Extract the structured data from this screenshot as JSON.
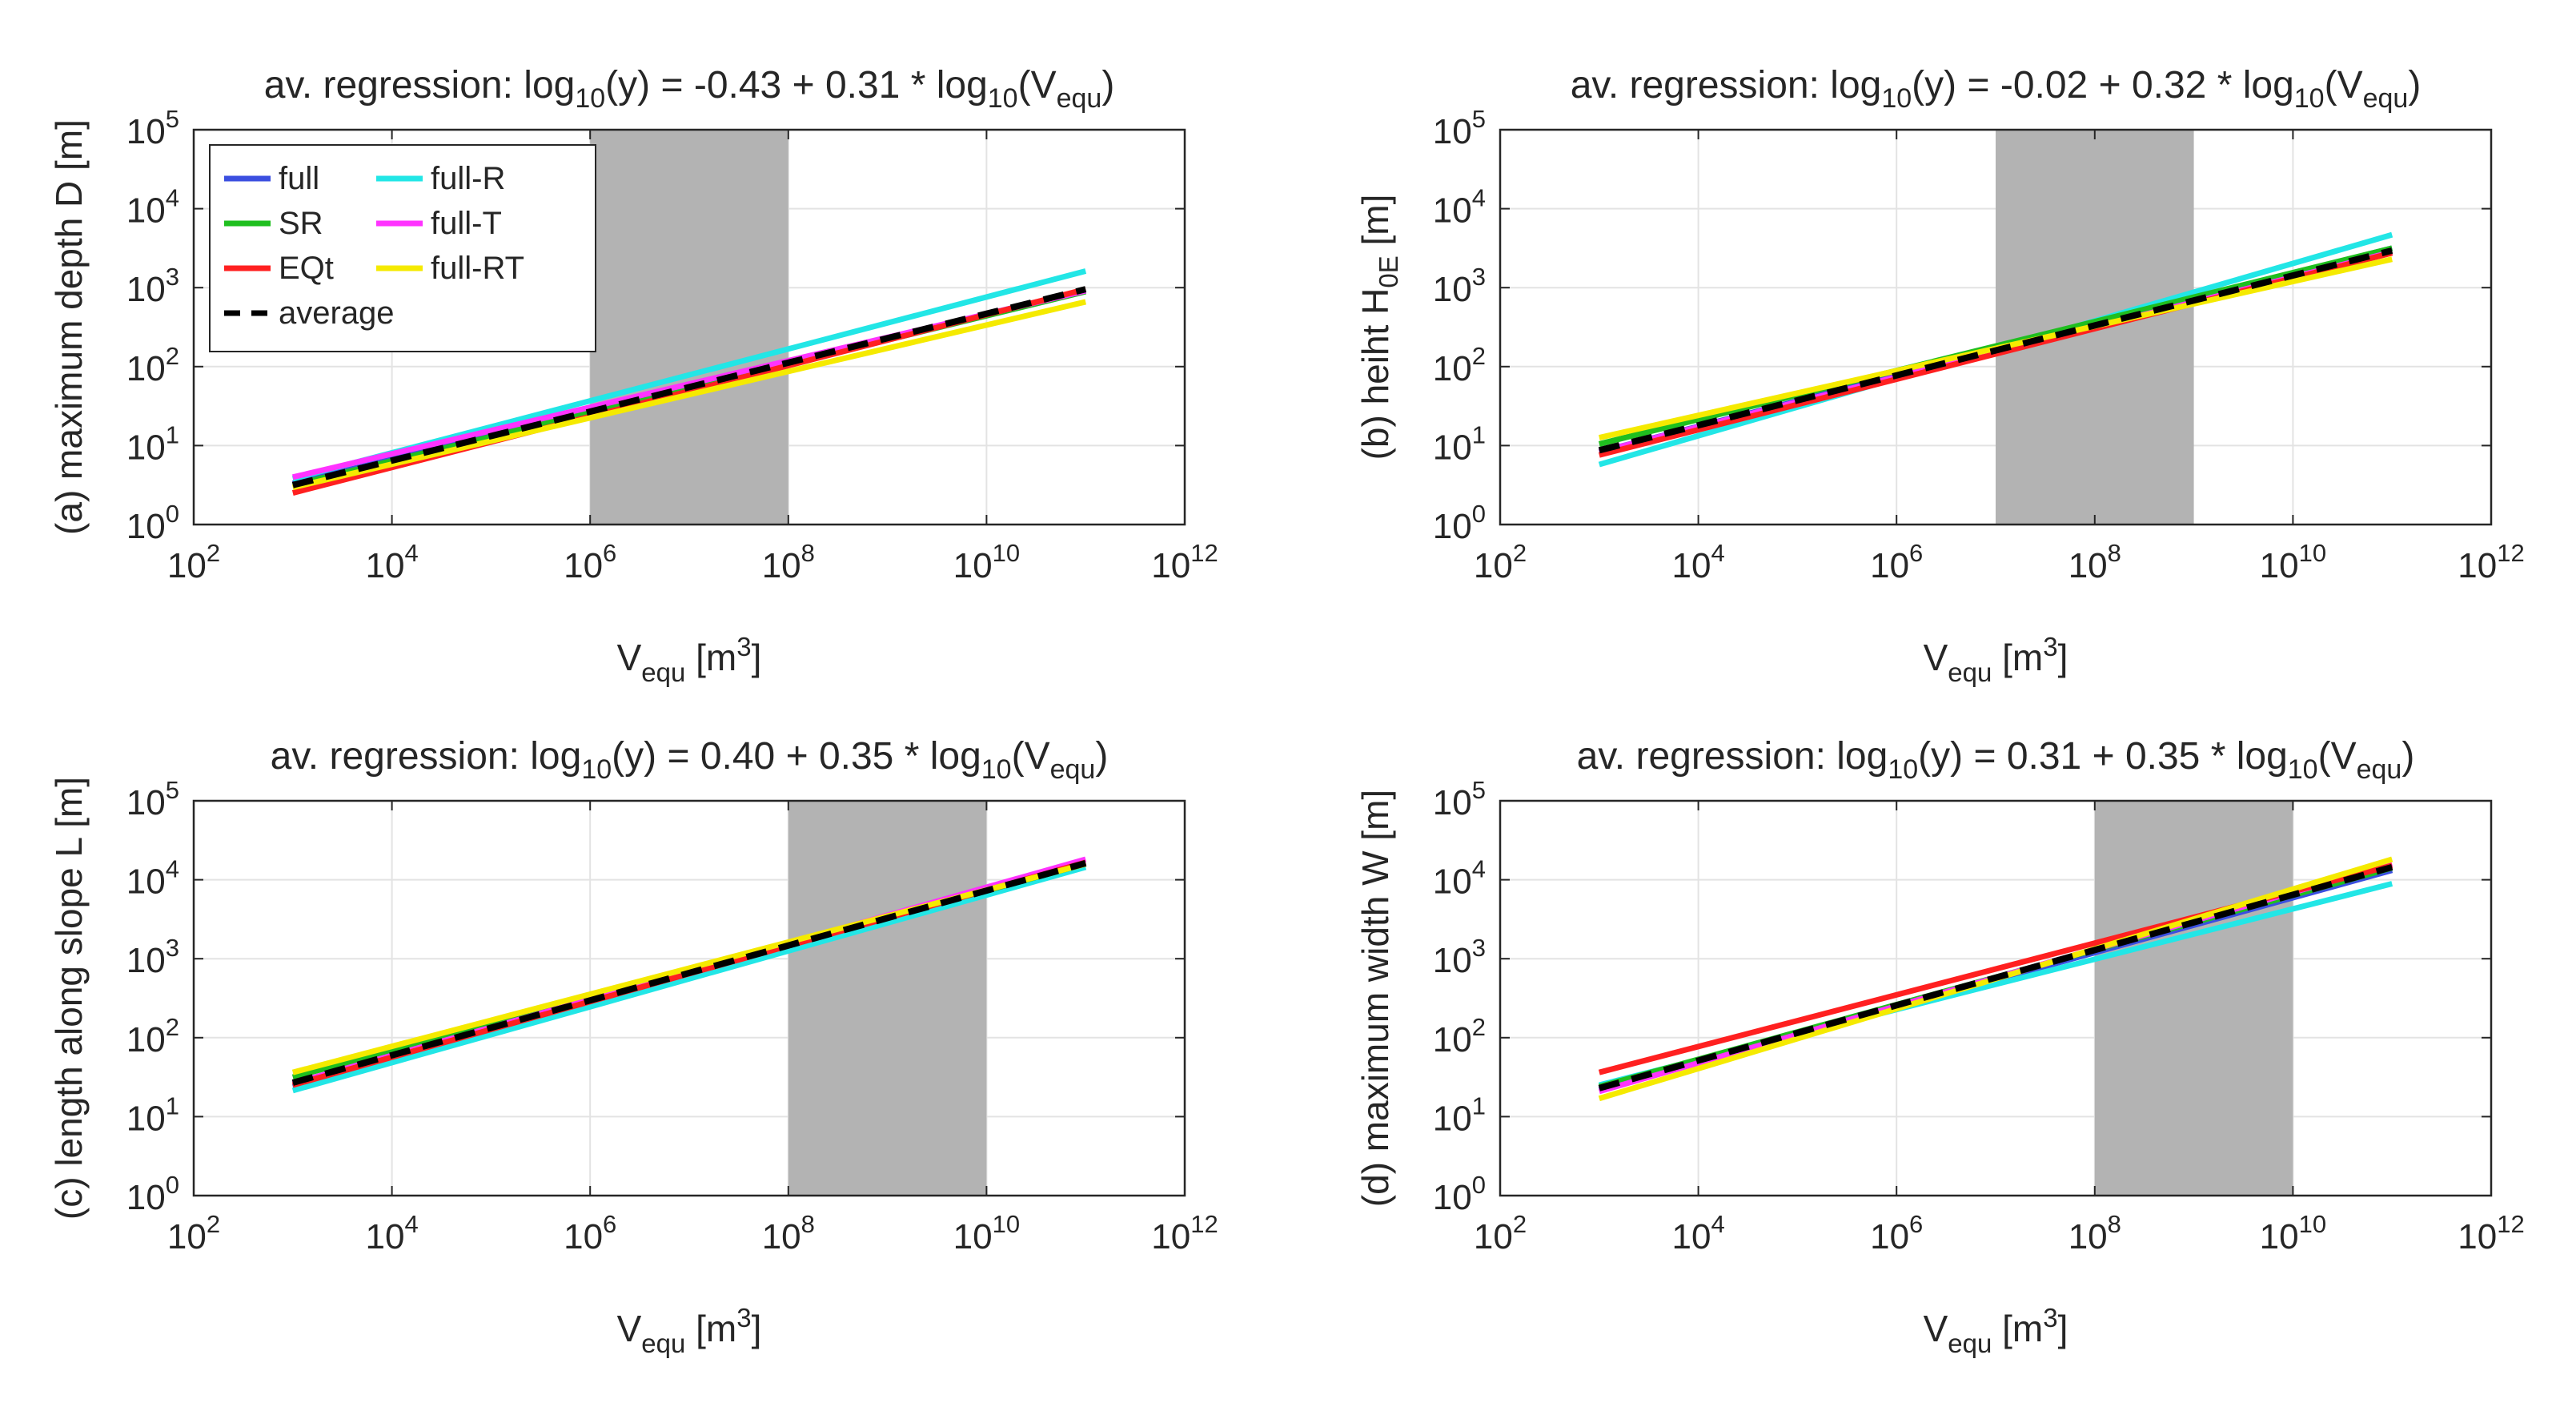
{
  "chart_data": [
    {
      "id": "a",
      "type": "line",
      "scale": "log-log",
      "title_parts": [
        "av. regression: log",
        "10",
        "(y) = -0.43 + 0.31 * log",
        "10",
        "(V",
        "equ",
        ")"
      ],
      "ylabel": "(a) maximum depth D [m]",
      "xlabel_parts": [
        "V",
        "equ",
        " [m",
        "3",
        "]"
      ],
      "x_decades": [
        2,
        4,
        6,
        8,
        10,
        12
      ],
      "y_decades": [
        0,
        1,
        2,
        3,
        4,
        5
      ],
      "xlim_exp": [
        2,
        12
      ],
      "ylim_exp": [
        0,
        5
      ],
      "grid": true,
      "shaded_range_exp": [
        6,
        8
      ],
      "legend": {
        "placement": "top-left",
        "columns": 2
      },
      "series": [
        {
          "name": "full",
          "color": "#3b4fe0",
          "dashed": false,
          "points_log10": [
            [
              3,
              0.52
            ],
            [
              11,
              2.97
            ]
          ]
        },
        {
          "name": "full-R",
          "color": "#22e6e6",
          "dashed": false,
          "points_log10": [
            [
              3,
              0.58
            ],
            [
              11,
              3.21
            ]
          ]
        },
        {
          "name": "SR",
          "color": "#1fbf1f",
          "dashed": false,
          "points_log10": [
            [
              3,
              0.5
            ],
            [
              11,
              2.95
            ]
          ]
        },
        {
          "name": "full-T",
          "color": "#ff33ff",
          "dashed": false,
          "points_log10": [
            [
              3,
              0.6
            ],
            [
              11,
              2.96
            ]
          ]
        },
        {
          "name": "EQt",
          "color": "#ff2020",
          "dashed": false,
          "points_log10": [
            [
              3,
              0.4
            ],
            [
              11,
              2.98
            ]
          ]
        },
        {
          "name": "full-RT",
          "color": "#f5ea00",
          "dashed": false,
          "points_log10": [
            [
              3,
              0.47
            ],
            [
              11,
              2.82
            ]
          ]
        },
        {
          "name": "average",
          "color": "#000000",
          "dashed": true,
          "points_log10": [
            [
              3,
              0.5
            ],
            [
              11,
              2.98
            ]
          ]
        }
      ]
    },
    {
      "id": "b",
      "type": "line",
      "scale": "log-log",
      "title_parts": [
        "av. regression: log",
        "10",
        "(y) = -0.02 + 0.32 * log",
        "10",
        "(V",
        "equ",
        ")"
      ],
      "ylabel_parts": [
        "(b) heiht H",
        "0E",
        " [m]"
      ],
      "xlabel_parts": [
        "V",
        "equ",
        " [m",
        "3",
        "]"
      ],
      "x_decades": [
        2,
        4,
        6,
        8,
        10,
        12
      ],
      "y_decades": [
        0,
        1,
        2,
        3,
        4,
        5
      ],
      "xlim_exp": [
        2,
        12
      ],
      "ylim_exp": [
        0,
        5
      ],
      "grid": true,
      "shaded_range_exp": [
        7,
        9
      ],
      "series": [
        {
          "name": "full",
          "color": "#3b4fe0",
          "dashed": false,
          "points_log10": [
            [
              3,
              0.92
            ],
            [
              11,
              3.5
            ]
          ]
        },
        {
          "name": "full-R",
          "color": "#22e6e6",
          "dashed": false,
          "points_log10": [
            [
              3,
              0.76
            ],
            [
              11,
              3.67
            ]
          ]
        },
        {
          "name": "SR",
          "color": "#1fbf1f",
          "dashed": false,
          "points_log10": [
            [
              3,
              1.02
            ],
            [
              11,
              3.5
            ]
          ]
        },
        {
          "name": "full-T",
          "color": "#ff33ff",
          "dashed": false,
          "points_log10": [
            [
              3,
              0.92
            ],
            [
              11,
              3.45
            ]
          ]
        },
        {
          "name": "EQt",
          "color": "#ff2020",
          "dashed": false,
          "points_log10": [
            [
              3,
              0.88
            ],
            [
              11,
              3.44
            ]
          ]
        },
        {
          "name": "full-RT",
          "color": "#f5ea00",
          "dashed": false,
          "points_log10": [
            [
              3,
              1.1
            ],
            [
              11,
              3.36
            ]
          ]
        },
        {
          "name": "average",
          "color": "#000000",
          "dashed": true,
          "points_log10": [
            [
              3,
              0.94
            ],
            [
              11,
              3.47
            ]
          ]
        }
      ]
    },
    {
      "id": "c",
      "type": "line",
      "scale": "log-log",
      "title_parts": [
        "av. regression: log",
        "10",
        "(y) = 0.40 + 0.35 * log",
        "10",
        "(V",
        "equ",
        ")"
      ],
      "ylabel": "(c) length along slope L [m]",
      "xlabel_parts": [
        "V",
        "equ",
        " [m",
        "3",
        "]"
      ],
      "x_decades": [
        2,
        4,
        6,
        8,
        10,
        12
      ],
      "y_decades": [
        0,
        1,
        2,
        3,
        4,
        5
      ],
      "xlim_exp": [
        2,
        12
      ],
      "ylim_exp": [
        0,
        5
      ],
      "grid": true,
      "shaded_range_exp": [
        8,
        10
      ],
      "series": [
        {
          "name": "full",
          "color": "#3b4fe0",
          "dashed": false,
          "points_log10": [
            [
              3,
              1.38
            ],
            [
              11,
              4.2
            ]
          ]
        },
        {
          "name": "full-R",
          "color": "#22e6e6",
          "dashed": false,
          "points_log10": [
            [
              3,
              1.33
            ],
            [
              11,
              4.16
            ]
          ]
        },
        {
          "name": "SR",
          "color": "#1fbf1f",
          "dashed": false,
          "points_log10": [
            [
              3,
              1.5
            ],
            [
              11,
              4.2
            ]
          ]
        },
        {
          "name": "full-T",
          "color": "#ff33ff",
          "dashed": false,
          "points_log10": [
            [
              3,
              1.42
            ],
            [
              11,
              4.26
            ]
          ]
        },
        {
          "name": "EQt",
          "color": "#ff2020",
          "dashed": false,
          "points_log10": [
            [
              3,
              1.4
            ],
            [
              11,
              4.22
            ]
          ]
        },
        {
          "name": "full-RT",
          "color": "#f5ea00",
          "dashed": false,
          "points_log10": [
            [
              3,
              1.56
            ],
            [
              11,
              4.2
            ]
          ]
        },
        {
          "name": "average",
          "color": "#000000",
          "dashed": true,
          "points_log10": [
            [
              3,
              1.43
            ],
            [
              11,
              4.21
            ]
          ]
        }
      ]
    },
    {
      "id": "d",
      "type": "line",
      "scale": "log-log",
      "title_parts": [
        "av. regression: log",
        "10",
        "(y) = 0.31 + 0.35 * log",
        "10",
        "(V",
        "equ",
        ")"
      ],
      "ylabel": "(d) maximum width W [m]",
      "xlabel_parts": [
        "V",
        "equ",
        " [m",
        "3",
        "]"
      ],
      "x_decades": [
        2,
        4,
        6,
        8,
        10,
        12
      ],
      "y_decades": [
        0,
        1,
        2,
        3,
        4,
        5
      ],
      "xlim_exp": [
        2,
        12
      ],
      "ylim_exp": [
        0,
        5
      ],
      "grid": true,
      "shaded_range_exp": [
        8,
        10
      ],
      "series": [
        {
          "name": "full",
          "color": "#3b4fe0",
          "dashed": false,
          "points_log10": [
            [
              3,
              1.34
            ],
            [
              11,
              4.12
            ]
          ]
        },
        {
          "name": "full-R",
          "color": "#22e6e6",
          "dashed": false,
          "points_log10": [
            [
              3,
              1.4
            ],
            [
              11,
              3.95
            ]
          ]
        },
        {
          "name": "SR",
          "color": "#1fbf1f",
          "dashed": false,
          "points_log10": [
            [
              3,
              1.38
            ],
            [
              11,
              4.15
            ]
          ]
        },
        {
          "name": "full-T",
          "color": "#ff33ff",
          "dashed": false,
          "points_log10": [
            [
              3,
              1.32
            ],
            [
              11,
              4.2
            ]
          ]
        },
        {
          "name": "EQt",
          "color": "#ff2020",
          "dashed": false,
          "points_log10": [
            [
              3,
              1.56
            ],
            [
              11,
              4.18
            ]
          ]
        },
        {
          "name": "full-RT",
          "color": "#f5ea00",
          "dashed": false,
          "points_log10": [
            [
              3,
              1.23
            ],
            [
              11,
              4.26
            ]
          ]
        },
        {
          "name": "average",
          "color": "#000000",
          "dashed": true,
          "points_log10": [
            [
              3,
              1.36
            ],
            [
              11,
              4.16
            ]
          ]
        }
      ]
    }
  ]
}
